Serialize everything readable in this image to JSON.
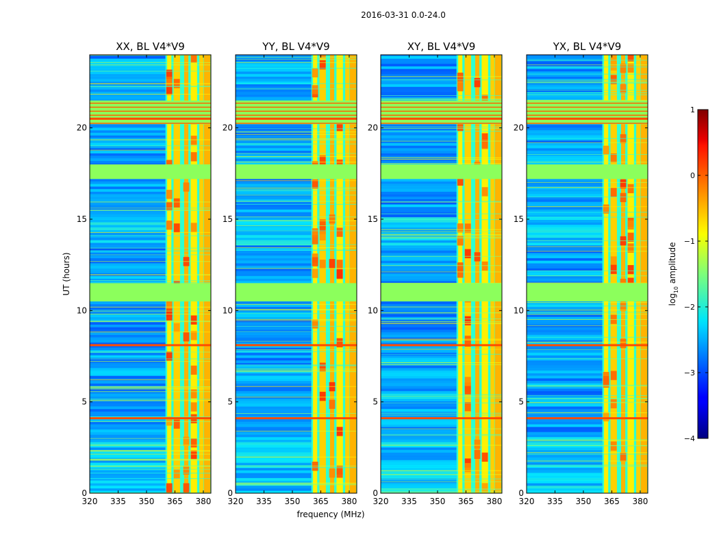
{
  "chart_data": {
    "type": "heatmap",
    "suptitle": "2016-03-31 0.0-24.0",
    "xlabel": "frequency (MHz)",
    "ylabel": "UT (hours)",
    "xlim": [
      320,
      384
    ],
    "ylim": [
      0,
      24
    ],
    "xticks": [
      320,
      335,
      350,
      365,
      380
    ],
    "yticks": [
      0,
      5,
      10,
      15,
      20
    ],
    "panels": [
      {
        "title": "XX, BL V4*V9"
      },
      {
        "title": "YY, BL V4*V9"
      },
      {
        "title": "XY, BL V4*V9"
      },
      {
        "title": "YX, BL V4*V9"
      }
    ],
    "colorbar": {
      "label": "log10 amplitude",
      "label_main": "log",
      "label_sub": "10",
      "label_tail": " amplitude",
      "range": [
        -4,
        1
      ],
      "ticks": [
        1,
        0,
        -1,
        -2,
        -3,
        -4
      ],
      "tick_labels": [
        "1",
        "0",
        "−1",
        "−2",
        "−3",
        "−4"
      ],
      "colormap": "jet"
    },
    "features": {
      "rfi_band_mhz": [
        360,
        384
      ],
      "rfi_column_centers_mhz": [
        362,
        366,
        371,
        375,
        379,
        382
      ],
      "flagged_time_blocks_h": [
        [
          10.5,
          11.5
        ],
        [
          17.2,
          18.0
        ],
        [
          20.2,
          21.5
        ]
      ],
      "strong_rfi_lines_h": [
        4.1,
        8.1,
        20.5
      ]
    }
  }
}
